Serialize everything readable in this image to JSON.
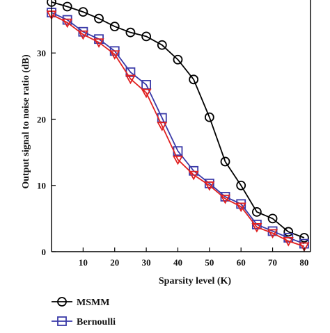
{
  "chart_data": {
    "type": "line",
    "title": "",
    "xlabel": "Sparsity level (K)",
    "ylabel": "Output signal to noise ratio (dB)",
    "xlim": [
      0,
      82
    ],
    "ylim": [
      0,
      38
    ],
    "xticks": [
      10,
      20,
      30,
      40,
      50,
      60,
      70,
      80
    ],
    "yticks": [
      0,
      10,
      20,
      30
    ],
    "grid": false,
    "legend_position": "bottom-left, below plot",
    "series": [
      {
        "name": "MSMM",
        "color": "#000000",
        "marker": "circle",
        "x": [
          0,
          5,
          10,
          15,
          20,
          25,
          30,
          35,
          40,
          45,
          50,
          55,
          60,
          65,
          70,
          75,
          80
        ],
        "y": [
          37.7,
          37.0,
          36.2,
          35.2,
          34.0,
          33.1,
          32.5,
          31.2,
          29.0,
          26.0,
          20.3,
          13.6,
          10.0,
          6.0,
          5.0,
          3.0,
          2.1
        ]
      },
      {
        "name": "Bernoulli",
        "color": "#3a3aa8",
        "marker": "square",
        "x": [
          0,
          5,
          10,
          15,
          20,
          25,
          30,
          35,
          40,
          45,
          50,
          55,
          60,
          65,
          70,
          75,
          80
        ],
        "y": [
          36.1,
          35.0,
          33.2,
          32.1,
          30.3,
          27.1,
          25.2,
          20.2,
          15.2,
          12.2,
          10.3,
          8.3,
          7.2,
          4.1,
          3.1,
          2.1,
          1.2
        ]
      },
      {
        "name": "",
        "color": "#e02020",
        "marker": "triangle-down",
        "x": [
          0,
          5,
          10,
          15,
          20,
          25,
          30,
          35,
          40,
          45,
          50,
          55,
          60,
          65,
          70,
          75,
          80
        ],
        "y": [
          35.8,
          34.6,
          32.8,
          31.6,
          29.8,
          26.1,
          24.0,
          19.0,
          13.9,
          11.6,
          10.0,
          8.0,
          6.8,
          3.7,
          2.8,
          1.6,
          0.8
        ]
      }
    ]
  },
  "colors": {
    "axis": "#000000"
  }
}
